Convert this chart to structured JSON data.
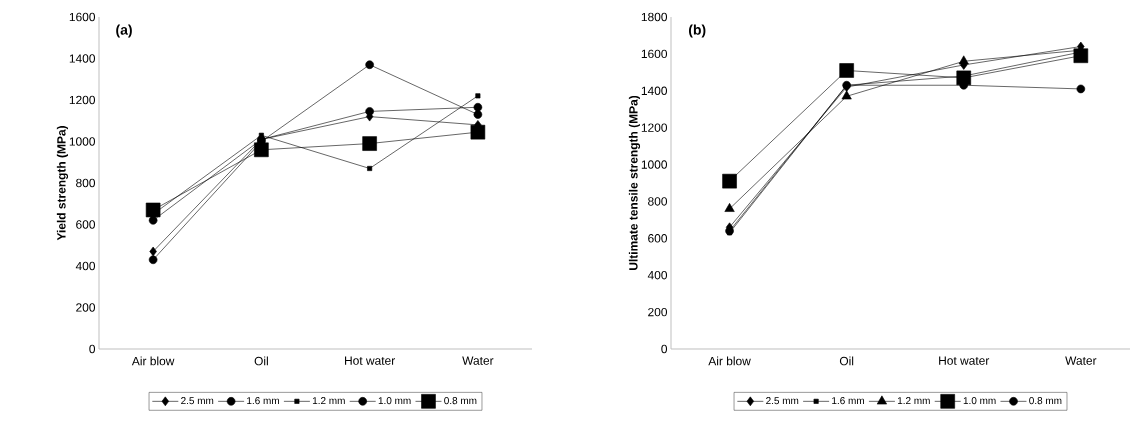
{
  "chart_data": [
    {
      "type": "line",
      "title": "(a)",
      "ylabel": "Yield strength (MPa)",
      "categories": [
        "Air blow",
        "Oil",
        "Hot water",
        "Water"
      ],
      "ylim": [
        0,
        1600
      ],
      "yticks": [
        0,
        200,
        400,
        600,
        800,
        1000,
        1200,
        1400,
        1600
      ],
      "grid": false,
      "legend": "bottom",
      "series": [
        {
          "name": "2.5 mm",
          "color": "#000000",
          "marker": "diamond",
          "values": [
            470,
            1010,
            1120,
            1080
          ]
        },
        {
          "name": "1.6 mm",
          "color": "#000000",
          "marker": "circle",
          "values": [
            430,
            1000,
            1370,
            1130
          ]
        },
        {
          "name": "1.2 mm",
          "color": "#000000",
          "marker": "square",
          "values": [
            650,
            1030,
            870,
            1220
          ]
        },
        {
          "name": "1.0 mm",
          "color": "#000000",
          "marker": "circle",
          "values": [
            620,
            1010,
            1145,
            1165
          ]
        },
        {
          "name": "0.8 mm",
          "color": "#000000",
          "marker": "square",
          "values": [
            670,
            960,
            990,
            1045
          ]
        }
      ]
    },
    {
      "type": "line",
      "title": "(b)",
      "ylabel": "Ultimate tensile strength (MPa)",
      "categories": [
        "Air blow",
        "Oil",
        "Hot water",
        "Water"
      ],
      "ylim": [
        0,
        1800
      ],
      "yticks": [
        0,
        200,
        400,
        600,
        800,
        1000,
        1200,
        1400,
        1600,
        1800
      ],
      "grid": false,
      "legend": "bottom",
      "series": [
        {
          "name": "2.5 mm",
          "color": "#000000",
          "marker": "diamond",
          "values": [
            660,
            1420,
            1540,
            1640
          ]
        },
        {
          "name": "1.6 mm",
          "color": "#000000",
          "marker": "square",
          "values": [
            630,
            1430,
            1480,
            1610
          ]
        },
        {
          "name": "1.2 mm",
          "color": "#000000",
          "marker": "triangle",
          "values": [
            760,
            1370,
            1560,
            1620
          ]
        },
        {
          "name": "1.0 mm",
          "color": "#000000",
          "marker": "square",
          "values": [
            910,
            1510,
            1470,
            1590
          ]
        },
        {
          "name": "0.8 mm",
          "color": "#000000",
          "marker": "circle",
          "values": [
            640,
            1430,
            1430,
            1410
          ]
        }
      ]
    }
  ]
}
